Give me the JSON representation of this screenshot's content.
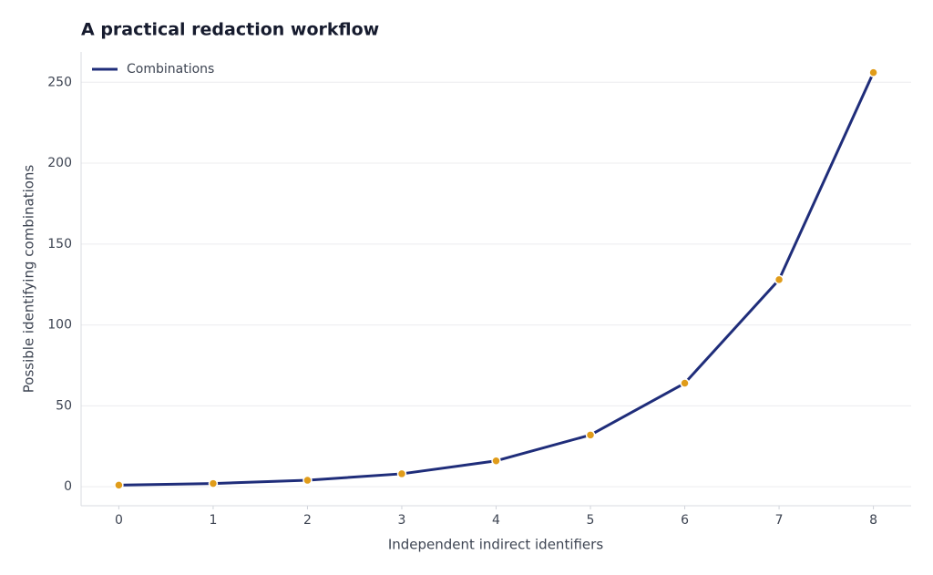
{
  "chart_data": {
    "type": "line",
    "title": "A practical redaction workflow",
    "x_label": "Independent indirect identifiers",
    "y_label": "Possible identifying combinations",
    "x": [
      0,
      1,
      2,
      3,
      4,
      5,
      6,
      7,
      8
    ],
    "series": [
      {
        "name": "Combinations",
        "color": "#1f2d7a",
        "marker_color": "#e09c1a",
        "values": [
          1,
          2,
          4,
          8,
          16,
          32,
          64,
          128,
          256
        ]
      }
    ],
    "xlim": [
      -0.4,
      8.4
    ],
    "xticks": [
      0,
      1,
      2,
      3,
      4,
      5,
      6,
      7,
      8
    ],
    "ylim": [
      -11.75,
      268.75
    ],
    "yticks": [
      0,
      50,
      100,
      150,
      200,
      250
    ],
    "grid": true,
    "legend": "upper left"
  }
}
